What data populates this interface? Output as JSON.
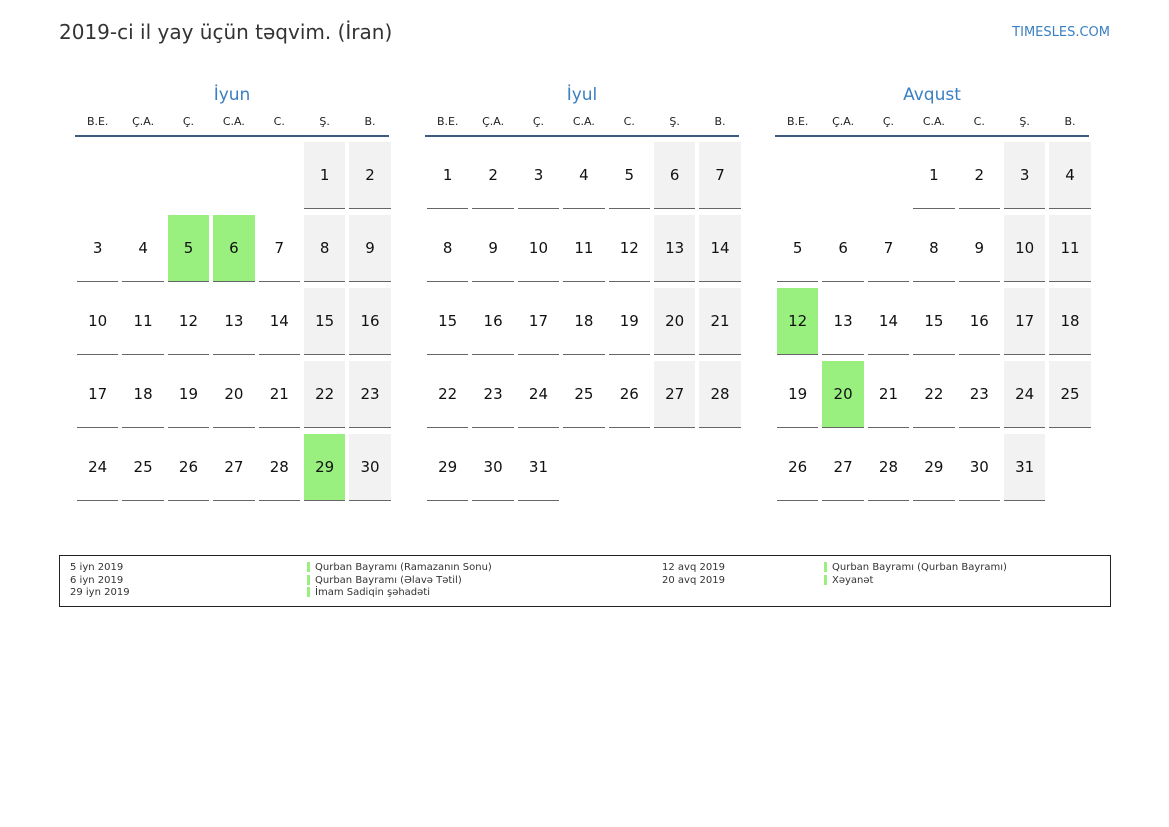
{
  "header": {
    "title": "2019-ci il yay üçün təqvim. (İran)",
    "site": "TIMESLES.COM"
  },
  "weekday_labels": [
    "B.E.",
    "Ç.A.",
    "Ç.",
    "C.A.",
    "C.",
    "Ş.",
    "B."
  ],
  "colors": {
    "holiday": "#99f07f",
    "weekend": "#f2f2f2",
    "accent": "#3a7fc1"
  },
  "months": [
    {
      "name": "İyun",
      "weeks": [
        [
          "",
          "",
          "",
          "",
          "",
          "1",
          "2"
        ],
        [
          "3",
          "4",
          "5",
          "6",
          "7",
          "8",
          "9"
        ],
        [
          "10",
          "11",
          "12",
          "13",
          "14",
          "15",
          "16"
        ],
        [
          "17",
          "18",
          "19",
          "20",
          "21",
          "22",
          "23"
        ],
        [
          "24",
          "25",
          "26",
          "27",
          "28",
          "29",
          "30"
        ]
      ],
      "holidays": [
        "5",
        "6",
        "29"
      ]
    },
    {
      "name": "İyul",
      "weeks": [
        [
          "1",
          "2",
          "3",
          "4",
          "5",
          "6",
          "7"
        ],
        [
          "8",
          "9",
          "10",
          "11",
          "12",
          "13",
          "14"
        ],
        [
          "15",
          "16",
          "17",
          "18",
          "19",
          "20",
          "21"
        ],
        [
          "22",
          "23",
          "24",
          "25",
          "26",
          "27",
          "28"
        ],
        [
          "29",
          "30",
          "31",
          "",
          "",
          "",
          ""
        ]
      ],
      "holidays": []
    },
    {
      "name": "Avqust",
      "weeks": [
        [
          "",
          "",
          "",
          "1",
          "2",
          "3",
          "4"
        ],
        [
          "5",
          "6",
          "7",
          "8",
          "9",
          "10",
          "11"
        ],
        [
          "12",
          "13",
          "14",
          "15",
          "16",
          "17",
          "18"
        ],
        [
          "19",
          "20",
          "21",
          "22",
          "23",
          "24",
          "25"
        ],
        [
          "26",
          "27",
          "28",
          "29",
          "30",
          "31",
          ""
        ]
      ],
      "holidays": [
        "12",
        "20"
      ]
    }
  ],
  "legend": {
    "left": {
      "dates": [
        "5 iyn 2019",
        "6 iyn 2019",
        "29 iyn 2019"
      ],
      "names": [
        "Qurban Bayramı (Ramazanın Sonu)",
        "Qurban Bayramı (Əlavə Tətil)",
        "İmam Sadiqin şəhadəti"
      ]
    },
    "right": {
      "dates": [
        "12 avq 2019",
        "20 avq 2019"
      ],
      "names": [
        "Qurban Bayramı (Qurban Bayramı)",
        "Xəyanət"
      ]
    }
  }
}
